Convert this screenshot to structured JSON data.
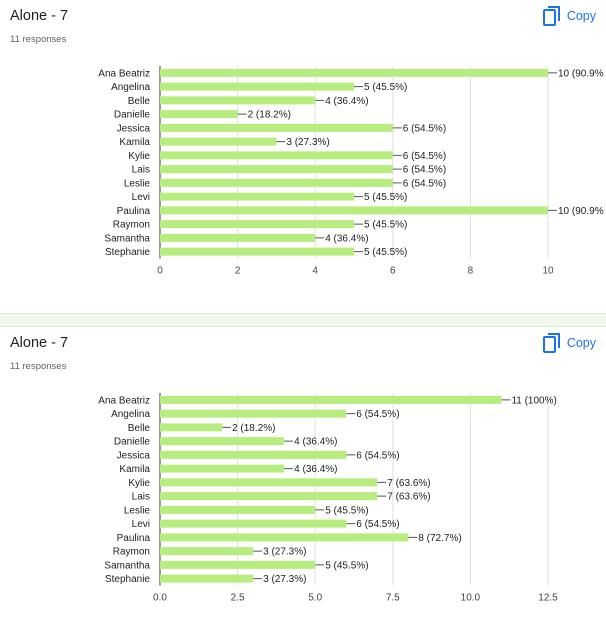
{
  "charts": [
    {
      "title": "Alone - 7",
      "responses": "11 responses",
      "copy_label": "Copy"
    },
    {
      "title": "Alone - 7",
      "responses": "11 responses",
      "copy_label": "Copy"
    }
  ],
  "colors": {
    "bar": "#b7ed7f",
    "link": "#1a73e8",
    "grid": "#e0e0e0"
  },
  "chart_data": [
    {
      "type": "bar",
      "orientation": "horizontal",
      "categories": [
        "Ana Beatriz",
        "Angelina",
        "Belle",
        "Danielle",
        "Jessica",
        "Kamila",
        "Kylie",
        "Lais",
        "Leslie",
        "Levi",
        "Paulina",
        "Raymon",
        "Samantha",
        "Stephanie"
      ],
      "values": [
        10,
        5,
        4,
        2,
        6,
        3,
        6,
        6,
        6,
        5,
        10,
        5,
        4,
        5
      ],
      "data_labels": [
        "10 (90.9%",
        "5 (45.5%)",
        "4 (36.4%)",
        "2 (18.2%)",
        "6 (54.5%)",
        "3 (27.3%)",
        "6 (54.5%)",
        "6 (54.5%)",
        "6 (54.5%)",
        "5 (45.5%)",
        "10 (90.9%",
        "5 (45.5%)",
        "4 (36.4%)",
        "5 (45.5%)"
      ],
      "xlim": [
        0,
        10
      ],
      "ticks": [
        "0",
        "2",
        "4",
        "6",
        "8",
        "10"
      ],
      "tick_values": [
        0,
        2,
        4,
        6,
        8,
        10
      ],
      "grid": true
    },
    {
      "type": "bar",
      "orientation": "horizontal",
      "categories": [
        "Ana Beatriz",
        "Angelina",
        "Belle",
        "Danielle",
        "Jessica",
        "Kamila",
        "Kylie",
        "Lais",
        "Leslie",
        "Levi",
        "Paulina",
        "Raymon",
        "Samantha",
        "Stephanie"
      ],
      "values": [
        11,
        6,
        2,
        4,
        6,
        4,
        7,
        7,
        5,
        6,
        8,
        3,
        5,
        3
      ],
      "data_labels": [
        "11 (100%)",
        "6 (54.5%)",
        "2 (18.2%)",
        "4 (36.4%)",
        "6 (54.5%)",
        "4 (36.4%)",
        "7 (63.6%)",
        "7 (63.6%)",
        "5 (45.5%)",
        "6 (54.5%)",
        "8 (72.7%)",
        "3 (27.3%)",
        "5 (45.5%)",
        "3 (27.3%)"
      ],
      "xlim": [
        0,
        12.5
      ],
      "ticks": [
        "0.0",
        "2.5",
        "5.0",
        "7.5",
        "10.0",
        "12.5"
      ],
      "tick_values": [
        0,
        2.5,
        5,
        7.5,
        10,
        12.5
      ],
      "grid": true
    }
  ]
}
